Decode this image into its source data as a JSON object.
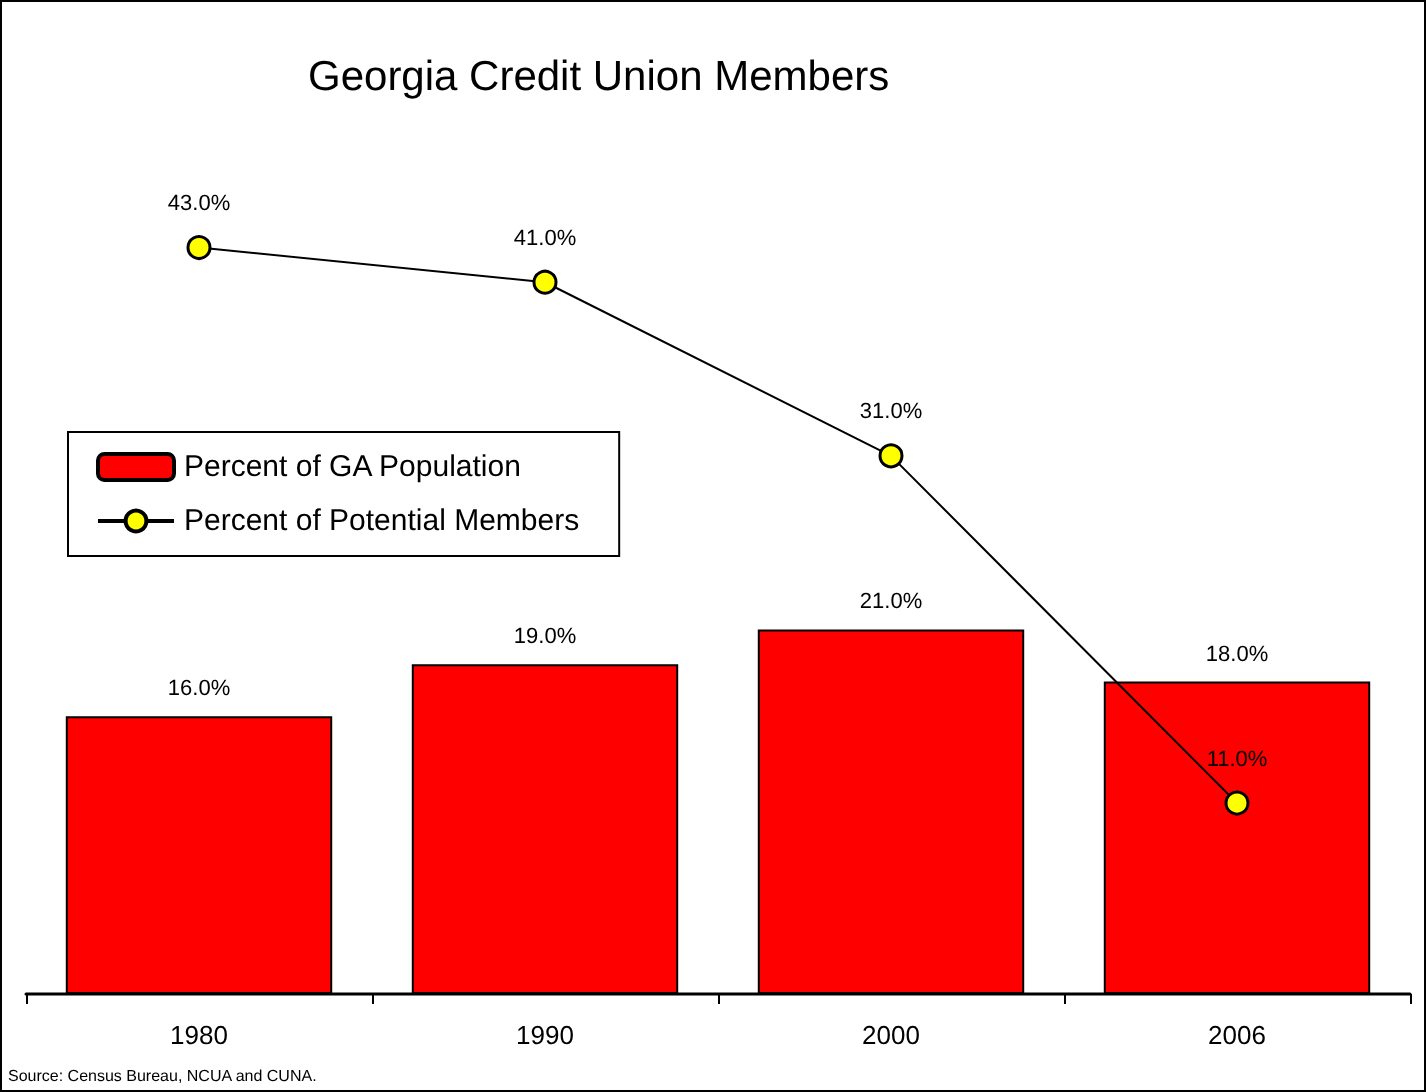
{
  "chart_data": {
    "type": "bar",
    "title": "Georgia Credit Union Members",
    "categories": [
      "1980",
      "1990",
      "2000",
      "2006"
    ],
    "series": [
      {
        "name": "Percent of GA Population",
        "color": "#ff0000",
        "values": [
          16.0,
          19.0,
          21.0,
          18.0
        ],
        "value_labels": [
          "16.0%",
          "19.0%",
          "21.0%",
          "18.0%"
        ]
      },
      {
        "name": "Percent of Potential Members",
        "type": "line",
        "color": "#ffff00",
        "marker": "circle",
        "values": [
          43.0,
          41.0,
          31.0,
          11.0
        ],
        "value_labels": [
          "43.0%",
          "41.0%",
          "31.0%",
          "11.0%"
        ]
      }
    ],
    "legend": "left",
    "grid": false,
    "annotations": [
      "Source: Census Bureau, NCUA and CUNA."
    ]
  }
}
